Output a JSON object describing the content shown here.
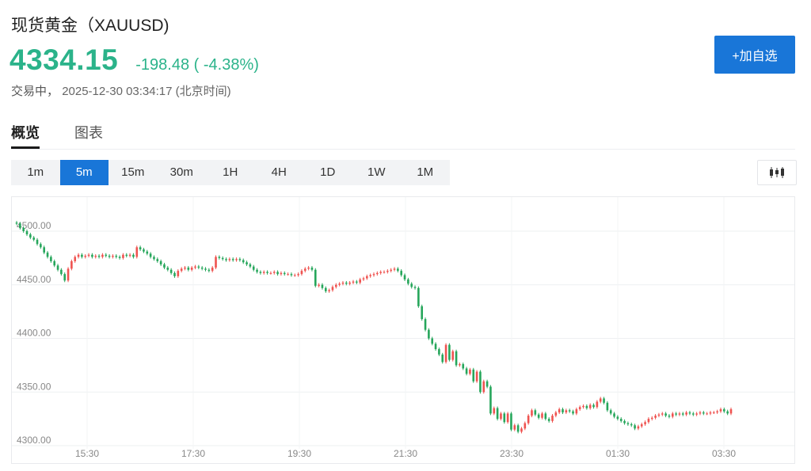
{
  "header": {
    "title": "现货黄金（XAUUSD)",
    "price": "4334.15",
    "change": "-198.48 ( -4.38%)",
    "status": "交易中，",
    "datetime": "2025-12-30 03:34:17",
    "timezone": "(北京时间)",
    "add_favorite_label": "+加自选"
  },
  "tabs": [
    {
      "label": "概览",
      "active": true
    },
    {
      "label": "图表",
      "active": false
    }
  ],
  "intervals": [
    {
      "label": "1m",
      "active": false
    },
    {
      "label": "5m",
      "active": true
    },
    {
      "label": "15m",
      "active": false
    },
    {
      "label": "30m",
      "active": false
    },
    {
      "label": "1H",
      "active": false
    },
    {
      "label": "4H",
      "active": false
    },
    {
      "label": "1D",
      "active": false
    },
    {
      "label": "1W",
      "active": false
    },
    {
      "label": "1M",
      "active": false
    }
  ],
  "chart_type_icon": "candlestick-icon",
  "colors": {
    "up": "#ef5350",
    "down": "#26a65b",
    "accent": "#1976d8",
    "price": "#2bb38a"
  },
  "chart_data": {
    "type": "candlestick",
    "title": "",
    "xlabel": "",
    "ylabel": "",
    "ylim": [
      4300,
      4520
    ],
    "y_ticks": [
      "4300.00",
      "4350.00",
      "4400.00",
      "4450.00",
      "4500.00"
    ],
    "x_ticks": [
      "15:30",
      "17:30",
      "19:30",
      "21:30",
      "23:30",
      "01:30",
      "03:30"
    ],
    "grid": true,
    "close": [
      4507,
      4503,
      4500,
      4497,
      4494,
      4492,
      4488,
      4485,
      4480,
      4476,
      4472,
      4468,
      4464,
      4460,
      4454,
      4465,
      4472,
      4476,
      4478,
      4476,
      4477,
      4478,
      4476,
      4477,
      4476,
      4478,
      4477,
      4476,
      4477,
      4476,
      4475,
      4478,
      4477,
      4478,
      4476,
      4485,
      4483,
      4481,
      4479,
      4476,
      4474,
      4472,
      4469,
      4466,
      4464,
      4461,
      4458,
      4463,
      4465,
      4466,
      4464,
      4466,
      4467,
      4466,
      4465,
      4464,
      4463,
      4466,
      4476,
      4475,
      4474,
      4473,
      4474,
      4473,
      4474,
      4473,
      4471,
      4469,
      4467,
      4464,
      4462,
      4461,
      4462,
      4461,
      4461,
      4462,
      4460,
      4461,
      4460,
      4460,
      4459,
      4459,
      4460,
      4463,
      4465,
      4466,
      4464,
      4449,
      4450,
      4447,
      4444,
      4445,
      4448,
      4450,
      4451,
      4452,
      4451,
      4452,
      4453,
      4452,
      4455,
      4456,
      4458,
      4459,
      4460,
      4461,
      4462,
      4462,
      4463,
      4464,
      4465,
      4463,
      4459,
      4455,
      4451,
      4448,
      4447,
      4430,
      4418,
      4408,
      4400,
      4395,
      4390,
      4385,
      4378,
      4394,
      4380,
      4388,
      4375,
      4376,
      4372,
      4367,
      4371,
      4360,
      4369,
      4350,
      4360,
      4355,
      4330,
      4335,
      4325,
      4330,
      4322,
      4330,
      4315,
      4319,
      4313,
      4316,
      4321,
      4328,
      4333,
      4329,
      4326,
      4330,
      4325,
      4323,
      4328,
      4331,
      4334,
      4331,
      4333,
      4332,
      4330,
      4334,
      4336,
      4337,
      4335,
      4338,
      4336,
      4341,
      4344,
      4340,
      4333,
      4330,
      4327,
      4325,
      4323,
      4321,
      4320,
      4319,
      4316,
      4318,
      4320,
      4322,
      4325,
      4326,
      4328,
      4329,
      4330,
      4328,
      4327,
      4330,
      4329,
      4330,
      4329,
      4331,
      4330,
      4329,
      4330,
      4331,
      4330,
      4330,
      4331,
      4331,
      4332,
      4334,
      4332,
      4330,
      4334
    ],
    "y_unit": "USD"
  }
}
